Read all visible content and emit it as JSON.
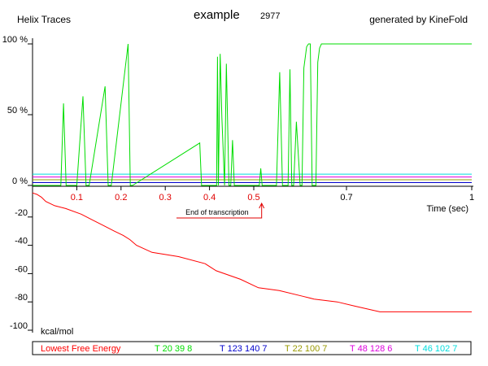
{
  "header": {
    "left": "Helix Traces",
    "title": "example",
    "number": "2977",
    "right": "generated by KineFold"
  },
  "chart_data": [
    {
      "type": "line",
      "name": "helix-traces",
      "x_label": "Time (sec)",
      "y_tick_labels": [
        "100 %",
        "50 %",
        "0 %"
      ],
      "y_ticks": [
        100,
        50,
        0
      ],
      "x_tick_labels": [
        "0.1",
        "0.2",
        "0.3",
        "0.4",
        "0.5",
        "0.7",
        "1"
      ],
      "x_ticks": [
        0.1,
        0.2,
        0.3,
        0.4,
        0.5,
        0.7,
        1
      ],
      "x_tick_colors": [
        "#e00000",
        "#e00000",
        "#e00000",
        "#e00000",
        "#e00000",
        "#000000",
        "#000000"
      ],
      "xlim": [
        0,
        1
      ],
      "ylim": [
        0,
        100
      ],
      "x_scale": "piecewise",
      "annotation": {
        "text": "End of transcription",
        "x": 0.51
      },
      "series": [
        {
          "name": "T 20 39 8",
          "color": "#00dd00",
          "x": [
            0,
            0.064,
            0.07,
            0.076,
            0.1,
            0.114,
            0.121,
            0.128,
            0.164,
            0.171,
            0.178,
            0.216,
            0.221,
            0.226,
            0.378,
            0.382,
            0.386,
            0.416,
            0.418,
            0.42,
            0.424,
            0.428,
            0.434,
            0.438,
            0.444,
            0.448,
            0.452,
            0.456,
            0.46,
            0.464,
            0.466,
            0.512,
            0.515,
            0.518,
            0.549,
            0.556,
            0.562,
            0.574,
            0.578,
            0.582,
            0.586,
            0.592,
            0.6,
            0.604,
            0.608,
            0.614,
            0.618,
            0.622,
            0.626,
            0.634,
            0.638,
            0.642,
            0.646,
            1
          ],
          "values": [
            0,
            0,
            58,
            0,
            0,
            63,
            0,
            0,
            70,
            0,
            0,
            100,
            0,
            0,
            30,
            0,
            0,
            0,
            91,
            0,
            93,
            48,
            0,
            86,
            0,
            0,
            32,
            0,
            0,
            0,
            0,
            0,
            12,
            0,
            0,
            80,
            0,
            0,
            82,
            0,
            0,
            45,
            0,
            0,
            83,
            98,
            100,
            100,
            0,
            0,
            87,
            97,
            100,
            100
          ]
        },
        {
          "name": "T 123 140 7",
          "color": "#0000cc",
          "x": [
            0,
            1
          ],
          "values": [
            2,
            2
          ]
        },
        {
          "name": "T 22 100 7",
          "color": "#999900",
          "x": [
            0,
            1
          ],
          "values": [
            4,
            4
          ]
        },
        {
          "name": "T 48 128 6",
          "color": "#dd00dd",
          "x": [
            0,
            1
          ],
          "values": [
            6,
            6
          ]
        },
        {
          "name": "T 46 102 7",
          "color": "#00dddd",
          "x": [
            0,
            1
          ],
          "values": [
            8,
            8
          ]
        }
      ]
    },
    {
      "type": "line",
      "name": "free-energy",
      "y_label": "kcal/mol",
      "y_tick_labels": [
        "-20",
        "-40",
        "-60",
        "-80",
        "-100"
      ],
      "y_ticks": [
        -20,
        -40,
        -60,
        -80,
        -100
      ],
      "ylim": [
        -100,
        0
      ],
      "series": [
        {
          "name": "Lowest Free Energy",
          "color": "#ff0000",
          "x": [
            0,
            0.01,
            0.02,
            0.03,
            0.05,
            0.075,
            0.11,
            0.135,
            0.16,
            0.185,
            0.205,
            0.22,
            0.235,
            0.27,
            0.33,
            0.39,
            0.415,
            0.47,
            0.51,
            0.555,
            0.605,
            0.63,
            0.68,
            0.72,
            0.75,
            0.78,
            1
          ],
          "values": [
            -3,
            -4,
            -6,
            -9,
            -12,
            -14,
            -18,
            -22,
            -26,
            -30,
            -33,
            -36,
            -40,
            -45,
            -48,
            -53,
            -58,
            -64,
            -70,
            -72,
            -76,
            -78,
            -80,
            -83,
            -85,
            -87,
            -87
          ]
        }
      ]
    }
  ],
  "legend": [
    {
      "label": "Lowest Free Energy",
      "color": "#ff0000"
    },
    {
      "label": "T 20 39 8",
      "color": "#00dd00"
    },
    {
      "label": "T 123 140 7",
      "color": "#0000cc"
    },
    {
      "label": "T 22 100 7",
      "color": "#999900"
    },
    {
      "label": "T 48 128 6",
      "color": "#dd00dd"
    },
    {
      "label": "T 46 102 7",
      "color": "#00dddd"
    }
  ]
}
